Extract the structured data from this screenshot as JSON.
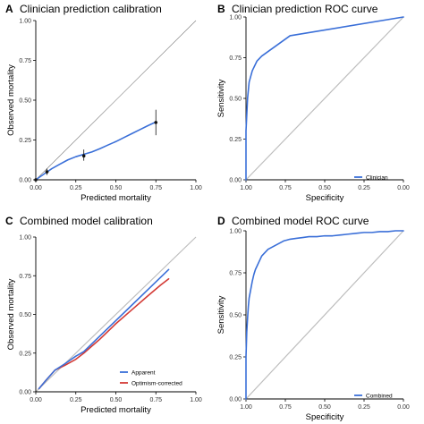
{
  "colors": {
    "blue": "#3a6fd8",
    "red": "#d33a35",
    "diagonal": "#bdbdbd",
    "diagonal_dark": "#7a7a7a",
    "axis": "#000000",
    "point": "#111111"
  },
  "chart_data": [
    {
      "panel": "A",
      "type": "line",
      "title": "Clinician prediction calibration",
      "xlabel": "Predicted mortality",
      "ylabel": "Observed mortality",
      "xlim": [
        0,
        1
      ],
      "ylim": [
        0,
        1
      ],
      "xticks": [
        "0.00",
        "0.25",
        "0.50",
        "0.75",
        "1.00"
      ],
      "yticks": [
        "0.00",
        "0.25",
        "0.50",
        "0.75",
        "1.00"
      ],
      "grid": false,
      "reference_line": true,
      "series": [
        {
          "x": [
            0.0,
            0.05,
            0.1,
            0.15,
            0.2,
            0.25,
            0.3,
            0.35,
            0.4,
            0.45,
            0.5,
            0.55,
            0.6,
            0.65,
            0.7,
            0.75
          ],
          "y": [
            0.0,
            0.035,
            0.07,
            0.098,
            0.125,
            0.145,
            0.16,
            0.175,
            0.195,
            0.218,
            0.24,
            0.265,
            0.29,
            0.315,
            0.34,
            0.363
          ]
        }
      ],
      "points": [
        {
          "x": 0.0,
          "y": 0.0,
          "lo": 0.0,
          "hi": 0.01
        },
        {
          "x": 0.07,
          "y": 0.05,
          "lo": 0.03,
          "hi": 0.07
        },
        {
          "x": 0.3,
          "y": 0.15,
          "lo": 0.12,
          "hi": 0.19
        },
        {
          "x": 0.75,
          "y": 0.36,
          "lo": 0.28,
          "hi": 0.44
        }
      ]
    },
    {
      "panel": "B",
      "type": "line",
      "title": "Clinician prediction ROC curve",
      "xlabel": "Specificity",
      "ylabel": "Sensitivity",
      "xlim": [
        1,
        0
      ],
      "ylim": [
        0,
        1
      ],
      "xticks": [
        "1.00",
        "0.75",
        "0.50",
        "0.25",
        "0.00"
      ],
      "yticks": [
        "0.00",
        "0.25",
        "0.50",
        "0.75",
        "1.00"
      ],
      "grid": false,
      "reference_line": true,
      "legend_position": "bottom-right",
      "series": [
        {
          "name": "Clinician",
          "x": [
            1.0,
            1.0,
            0.99,
            0.98,
            0.96,
            0.93,
            0.9,
            0.72,
            0.0
          ],
          "y": [
            0.0,
            0.3,
            0.5,
            0.6,
            0.67,
            0.73,
            0.76,
            0.885,
            1.0
          ]
        }
      ]
    },
    {
      "panel": "C",
      "type": "line",
      "title": "Combined model calibration",
      "xlabel": "Predicted mortality",
      "ylabel": "Observed mortality",
      "xlim": [
        0,
        1
      ],
      "ylim": [
        0,
        1
      ],
      "xticks": [
        "0.00",
        "0.25",
        "0.50",
        "0.75",
        "1.00"
      ],
      "yticks": [
        "0.00",
        "0.25",
        "0.50",
        "0.75",
        "1.00"
      ],
      "grid": false,
      "reference_line": true,
      "legend_position": "bottom-right",
      "series": [
        {
          "name": "Apparent",
          "x": [
            0.02,
            0.06,
            0.12,
            0.18,
            0.25,
            0.3,
            0.4,
            0.5,
            0.6,
            0.7,
            0.78,
            0.83
          ],
          "y": [
            0.02,
            0.07,
            0.14,
            0.18,
            0.23,
            0.26,
            0.36,
            0.46,
            0.56,
            0.66,
            0.74,
            0.79
          ]
        },
        {
          "name": "Optimism-corrected",
          "x": [
            0.02,
            0.06,
            0.12,
            0.18,
            0.25,
            0.3,
            0.4,
            0.5,
            0.6,
            0.7,
            0.78,
            0.83
          ],
          "y": [
            0.02,
            0.07,
            0.14,
            0.17,
            0.21,
            0.25,
            0.34,
            0.44,
            0.53,
            0.62,
            0.69,
            0.73
          ]
        }
      ]
    },
    {
      "panel": "D",
      "type": "line",
      "title": "Combined model ROC curve",
      "xlabel": "Specificity",
      "ylabel": "Sensitivity",
      "xlim": [
        1,
        0
      ],
      "ylim": [
        0,
        1
      ],
      "xticks": [
        "1.00",
        "0.75",
        "0.50",
        "0.25",
        "0.00"
      ],
      "yticks": [
        "0.00",
        "0.25",
        "0.50",
        "0.75",
        "1.00"
      ],
      "grid": false,
      "reference_line": true,
      "legend_position": "bottom-right",
      "series": [
        {
          "name": "Combined",
          "x": [
            1.0,
            1.0,
            0.995,
            0.99,
            0.985,
            0.98,
            0.97,
            0.96,
            0.95,
            0.94,
            0.93,
            0.92,
            0.91,
            0.9,
            0.88,
            0.86,
            0.84,
            0.82,
            0.8,
            0.78,
            0.76,
            0.74,
            0.72,
            0.68,
            0.64,
            0.6,
            0.55,
            0.5,
            0.45,
            0.4,
            0.35,
            0.3,
            0.25,
            0.2,
            0.15,
            0.1,
            0.05,
            0.0
          ],
          "y": [
            0.0,
            0.25,
            0.4,
            0.48,
            0.55,
            0.6,
            0.65,
            0.7,
            0.74,
            0.77,
            0.79,
            0.81,
            0.83,
            0.85,
            0.87,
            0.89,
            0.9,
            0.91,
            0.92,
            0.93,
            0.94,
            0.945,
            0.95,
            0.955,
            0.96,
            0.965,
            0.965,
            0.97,
            0.97,
            0.975,
            0.98,
            0.985,
            0.99,
            0.99,
            0.995,
            0.995,
            1.0,
            1.0
          ]
        }
      ]
    }
  ]
}
